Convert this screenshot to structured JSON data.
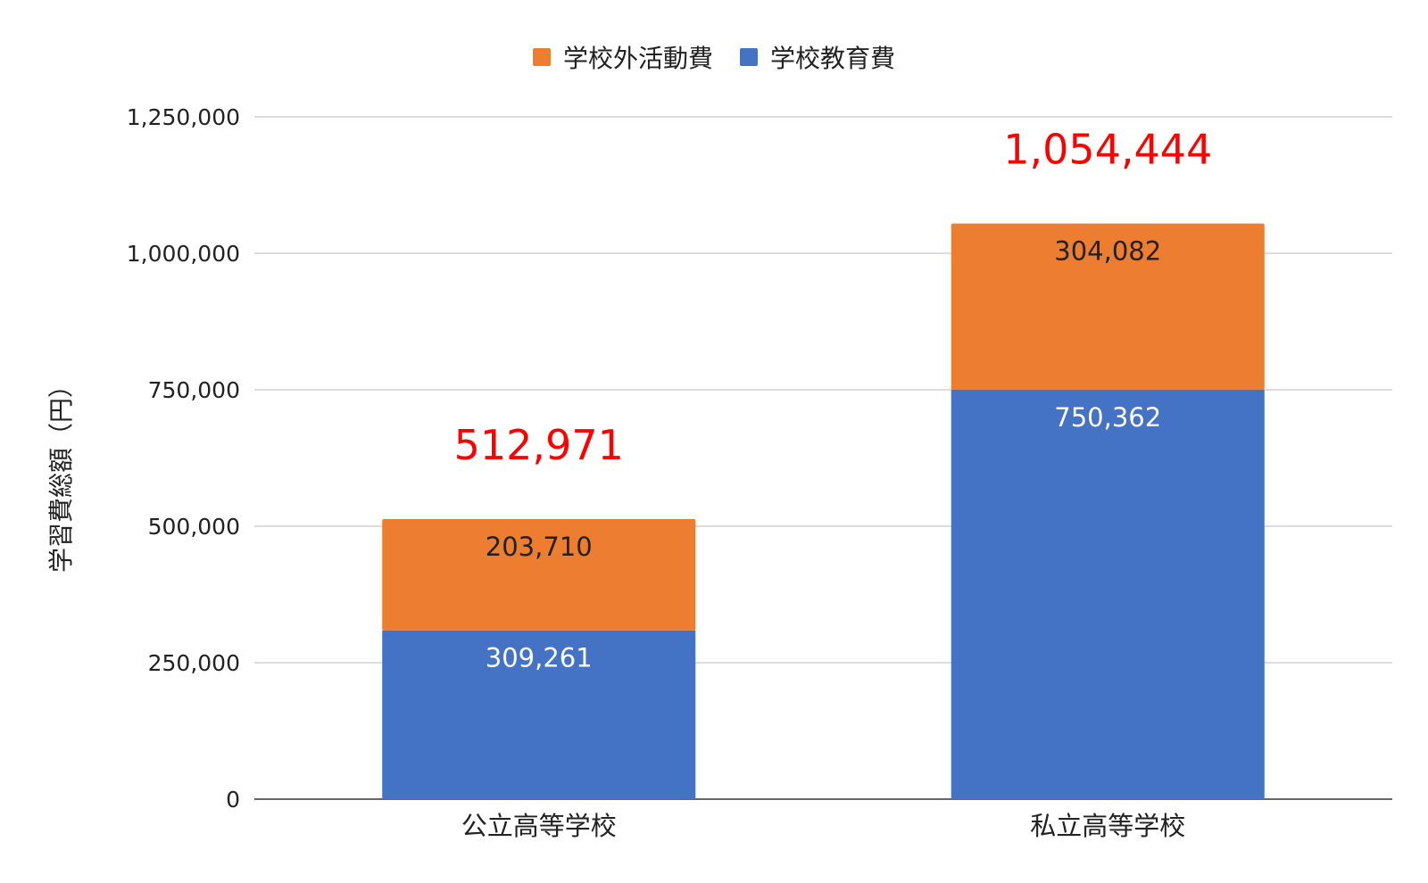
{
  "chart_data": {
    "type": "bar",
    "stacked": true,
    "categories": [
      "公立高等学校",
      "私立高等学校"
    ],
    "series": [
      {
        "name": "学校教育費",
        "values": [
          309261,
          750362
        ],
        "labels": [
          "309,261",
          "750,362"
        ],
        "color": "#4472C4",
        "label_color": "#ffffff"
      },
      {
        "name": "学校外活動費",
        "values": [
          203710,
          304082
        ],
        "labels": [
          "203,710",
          "304,082"
        ],
        "color": "#ED7D31",
        "label_color": "#222222"
      }
    ],
    "totals": [
      512971,
      1054444
    ],
    "total_labels": [
      "512,971",
      "1,054,444"
    ],
    "total_label_color": "#FF0000",
    "ylabel": "学習費総額（円）",
    "xlabel": "",
    "ylim": [
      0,
      1250000
    ],
    "yticks": [
      0,
      250000,
      500000,
      750000,
      1000000,
      1250000
    ],
    "ytick_labels": [
      "0",
      "250,000",
      "500,000",
      "750,000",
      "1,000,000",
      "1,250,000"
    ],
    "grid": true,
    "grid_color": "#d0d0d0",
    "legend_position": "top-center",
    "legend_order": [
      "学校外活動費",
      "学校教育費"
    ]
  }
}
